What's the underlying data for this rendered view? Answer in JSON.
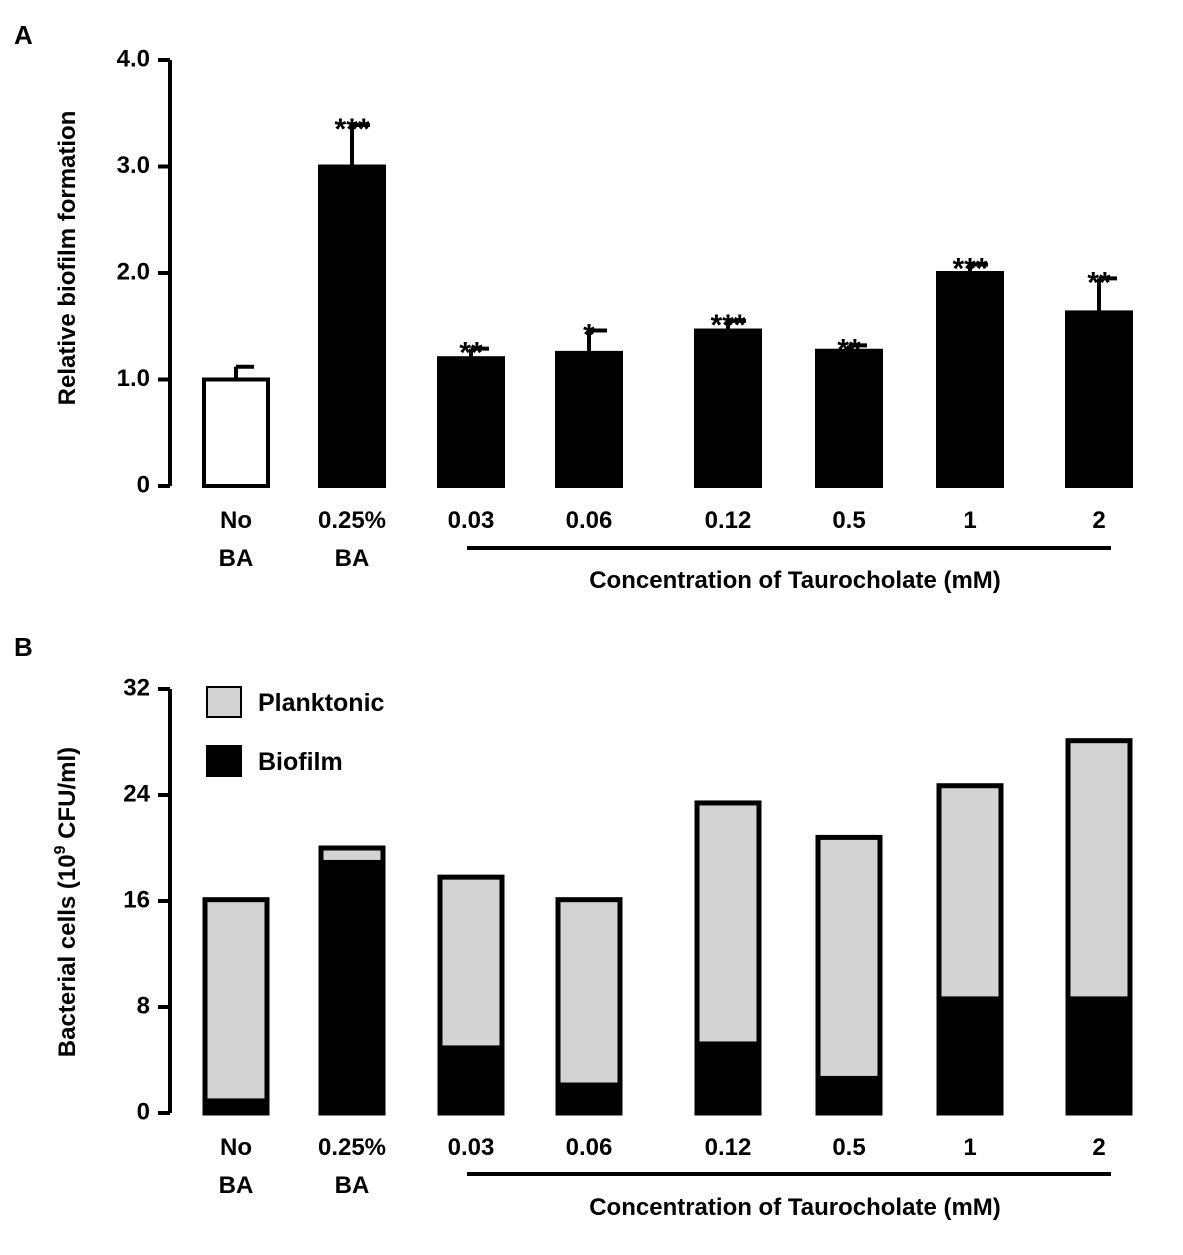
{
  "chart_data": [
    {
      "panel": "A",
      "type": "bar",
      "categories": [
        {
          "line1": "No",
          "line2": "BA"
        },
        {
          "line1": "0.25%",
          "line2": "BA"
        },
        {
          "line1": "0.03",
          "line2": ""
        },
        {
          "line1": "0.06",
          "line2": ""
        },
        {
          "line1": "0.12",
          "line2": ""
        },
        {
          "line1": "0.5",
          "line2": ""
        },
        {
          "line1": "1",
          "line2": ""
        },
        {
          "line1": "2",
          "line2": ""
        }
      ],
      "values": [
        1.0,
        3.0,
        1.2,
        1.25,
        1.46,
        1.27,
        2.0,
        1.63
      ],
      "errors": [
        0.12,
        0.39,
        0.09,
        0.21,
        0.09,
        0.05,
        0.08,
        0.32
      ],
      "significance": [
        "",
        "***",
        "**",
        "*",
        "***",
        "**",
        "***",
        "**"
      ],
      "bar_fill": [
        "white",
        "black",
        "black",
        "black",
        "black",
        "black",
        "black",
        "black"
      ],
      "ylabel": "Relative biofilm formation",
      "ylim": [
        0,
        4.0
      ],
      "yticks": [
        "0",
        "1.0",
        "2.0",
        "3.0",
        "4.0"
      ],
      "ytick_values": [
        0,
        1,
        2,
        3,
        4
      ],
      "group_label": "Concentration of Taurocholate (mM)"
    },
    {
      "panel": "B",
      "type": "bar",
      "stacked": true,
      "categories": [
        {
          "line1": "No",
          "line2": "BA"
        },
        {
          "line1": "0.25%",
          "line2": "BA"
        },
        {
          "line1": "0.03",
          "line2": ""
        },
        {
          "line1": "0.06",
          "line2": ""
        },
        {
          "line1": "0.12",
          "line2": ""
        },
        {
          "line1": "0.5",
          "line2": ""
        },
        {
          "line1": "1",
          "line2": ""
        },
        {
          "line1": "2",
          "line2": ""
        }
      ],
      "series": [
        {
          "name": "Biofilm",
          "color": "#000000",
          "values": [
            1.1,
            19.1,
            5.1,
            2.3,
            5.4,
            2.8,
            8.8,
            8.8
          ]
        },
        {
          "name": "Planktonic",
          "color": "#d3d3d3",
          "values": [
            15.0,
            0.9,
            12.7,
            13.8,
            18.0,
            18.0,
            15.9,
            19.3
          ]
        }
      ],
      "ylabel_main": "Bacterial cells (10",
      "ylabel_sup": "9",
      "ylabel_end": " CFU/ml)",
      "ylim": [
        0,
        32
      ],
      "yticks": [
        "0",
        "8",
        "16",
        "24",
        "32"
      ],
      "ytick_values": [
        0,
        8,
        16,
        24,
        32
      ],
      "group_label": "Concentration of Taurocholate (mM)"
    }
  ]
}
